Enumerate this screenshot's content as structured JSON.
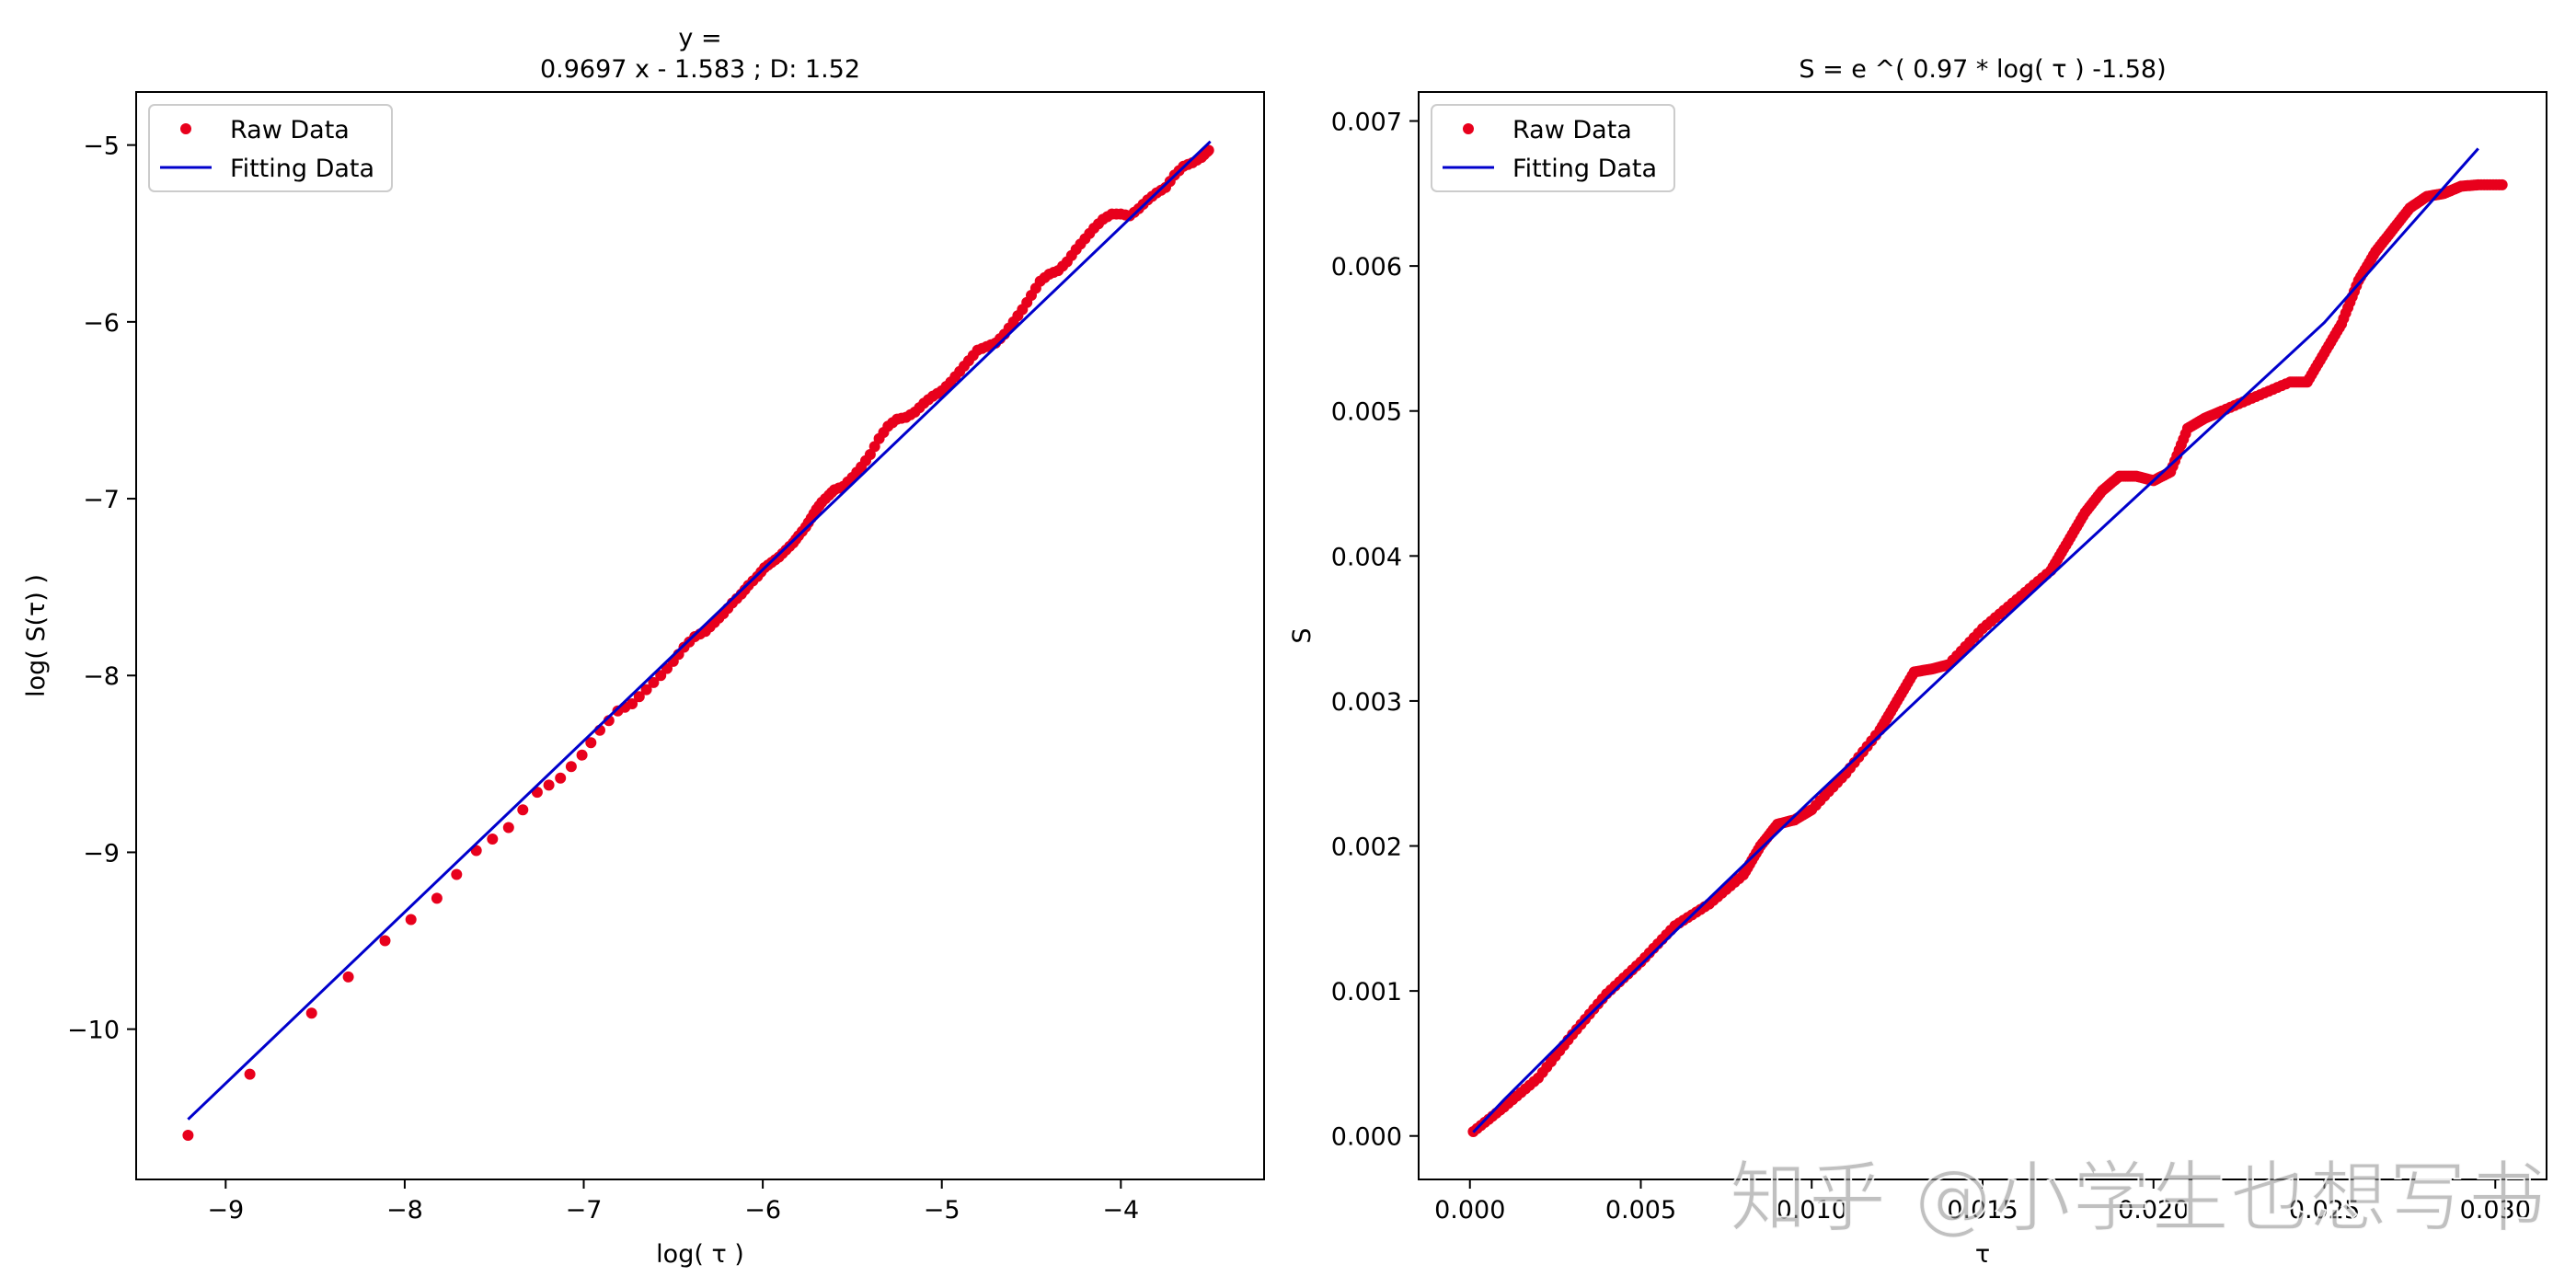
{
  "watermark": "知乎 @小学生也想写书",
  "chart_data": [
    {
      "type": "scatter",
      "title_line1": "y =",
      "title_line2": "0.9697 x - 1.583  ; D: 1.52",
      "xlabel": "log( τ )",
      "ylabel": "log( S(τ) )",
      "xlim": [
        -9.5,
        -3.2
      ],
      "ylim": [
        -10.85,
        -4.7
      ],
      "xticks": [
        -9,
        -8,
        -7,
        -6,
        -5,
        -4
      ],
      "yticks": [
        -10,
        -9,
        -8,
        -7,
        -6,
        -5
      ],
      "grid": false,
      "legend_position": "top-left",
      "legend": [
        "Raw Data",
        "Fitting Data"
      ],
      "colors": {
        "raw": "#e8001c",
        "fit": "#0000cc"
      },
      "series": [
        {
          "name": "Raw Data",
          "style": "markers",
          "x": [
            -9.21,
            -8.52,
            -8.11,
            -7.82,
            -7.6,
            -7.42,
            -7.26,
            -7.13,
            -7.01,
            -6.91,
            -6.81,
            -6.73,
            -6.65,
            -6.57,
            -6.5,
            -6.44,
            -6.38,
            -6.32,
            -6.27,
            -6.22,
            -6.17,
            -6.12,
            -6.08,
            -6.03,
            -5.99,
            -5.95,
            -5.91,
            -5.87,
            -5.83,
            -5.8,
            -5.76,
            -5.73,
            -5.7,
            -5.67,
            -5.63,
            -5.6,
            -5.55,
            -5.5,
            -5.45,
            -5.4,
            -5.35,
            -5.3,
            -5.25,
            -5.2,
            -5.15,
            -5.1,
            -5.05,
            -5.0,
            -4.95,
            -4.9,
            -4.85,
            -4.8,
            -4.75,
            -4.7,
            -4.65,
            -4.6,
            -4.55,
            -4.5,
            -4.45,
            -4.4,
            -4.35,
            -4.3,
            -4.25,
            -4.2,
            -4.15,
            -4.1,
            -4.05,
            -4.0,
            -3.95,
            -3.9,
            -3.85,
            -3.8,
            -3.75,
            -3.7,
            -3.65,
            -3.6,
            -3.55,
            -3.52,
            -3.51
          ],
          "y": [
            -10.6,
            -9.91,
            -9.5,
            -9.26,
            -8.99,
            -8.86,
            -8.66,
            -8.58,
            -8.45,
            -8.31,
            -8.2,
            -8.16,
            -8.08,
            -8.0,
            -7.92,
            -7.84,
            -7.78,
            -7.75,
            -7.7,
            -7.65,
            -7.59,
            -7.54,
            -7.49,
            -7.44,
            -7.39,
            -7.36,
            -7.33,
            -7.29,
            -7.25,
            -7.21,
            -7.16,
            -7.11,
            -7.06,
            -7.02,
            -6.98,
            -6.95,
            -6.93,
            -6.88,
            -6.82,
            -6.75,
            -6.66,
            -6.59,
            -6.55,
            -6.54,
            -6.51,
            -6.46,
            -6.42,
            -6.39,
            -6.34,
            -6.28,
            -6.22,
            -6.16,
            -6.14,
            -6.12,
            -6.07,
            -6.0,
            -5.93,
            -5.85,
            -5.77,
            -5.73,
            -5.71,
            -5.66,
            -5.59,
            -5.53,
            -5.47,
            -5.42,
            -5.39,
            -5.39,
            -5.4,
            -5.36,
            -5.31,
            -5.27,
            -5.24,
            -5.17,
            -5.12,
            -5.1,
            -5.07,
            -5.04,
            -5.03
          ]
        },
        {
          "name": "Fitting Data",
          "style": "line",
          "x": [
            -9.21,
            -3.5
          ],
          "y": [
            -10.51,
            -4.98
          ]
        }
      ]
    },
    {
      "type": "scatter",
      "title_line1": "S = e ^( 0.97 * log( τ )  -1.58)",
      "xlabel": "τ",
      "ylabel": "S",
      "xlim": [
        -0.0015,
        0.0315
      ],
      "ylim": [
        -0.0003,
        0.0072
      ],
      "xticks": [
        0.0,
        0.005,
        0.01,
        0.015,
        0.02,
        0.025,
        0.03
      ],
      "xtick_labels": [
        "0.000",
        "0.005",
        "0.010",
        "0.015",
        "0.020",
        "0.025",
        "0.030"
      ],
      "yticks": [
        0.0,
        0.001,
        0.002,
        0.003,
        0.004,
        0.005,
        0.006,
        0.007
      ],
      "ytick_labels": [
        "0.000",
        "0.001",
        "0.002",
        "0.003",
        "0.004",
        "0.005",
        "0.006",
        "0.007"
      ],
      "grid": false,
      "legend_position": "top-left",
      "legend": [
        "Raw Data",
        "Fitting Data"
      ],
      "colors": {
        "raw": "#e8001c",
        "fit": "#0000cc"
      },
      "series": [
        {
          "name": "Raw Data",
          "style": "markers",
          "x": [
            0.0001,
            0.001,
            0.002,
            0.003,
            0.004,
            0.005,
            0.006,
            0.007,
            0.008,
            0.0085,
            0.009,
            0.0095,
            0.01,
            0.011,
            0.012,
            0.0125,
            0.013,
            0.0135,
            0.014,
            0.015,
            0.016,
            0.017,
            0.0175,
            0.018,
            0.0185,
            0.019,
            0.0195,
            0.02,
            0.0205,
            0.021,
            0.0215,
            0.022,
            0.023,
            0.024,
            0.0245,
            0.025,
            0.0255,
            0.026,
            0.0265,
            0.027,
            0.0275,
            0.028,
            0.0285,
            0.029,
            0.0295,
            0.0302
          ],
          "y": [
            3e-05,
            0.0002,
            0.0004,
            0.0007,
            0.00098,
            0.0012,
            0.00145,
            0.0016,
            0.0018,
            0.002,
            0.00215,
            0.00218,
            0.00225,
            0.0025,
            0.0028,
            0.003,
            0.0032,
            0.00322,
            0.00325,
            0.0035,
            0.0037,
            0.0039,
            0.0041,
            0.0043,
            0.00445,
            0.00455,
            0.00455,
            0.00452,
            0.00458,
            0.00488,
            0.00495,
            0.005,
            0.0051,
            0.0052,
            0.0052,
            0.0054,
            0.0056,
            0.0059,
            0.0061,
            0.00625,
            0.0064,
            0.00648,
            0.0065,
            0.00655,
            0.00656,
            0.00656
          ]
        },
        {
          "name": "Fitting Data",
          "style": "line",
          "x": [
            0.0001,
            0.001,
            0.003,
            0.006,
            0.01,
            0.015,
            0.02,
            0.025,
            0.0295
          ],
          "y": [
            2.6e-05,
            0.00025,
            0.00072,
            0.00141,
            0.00232,
            0.00343,
            0.00452,
            0.00561,
            0.00681
          ]
        }
      ]
    }
  ]
}
